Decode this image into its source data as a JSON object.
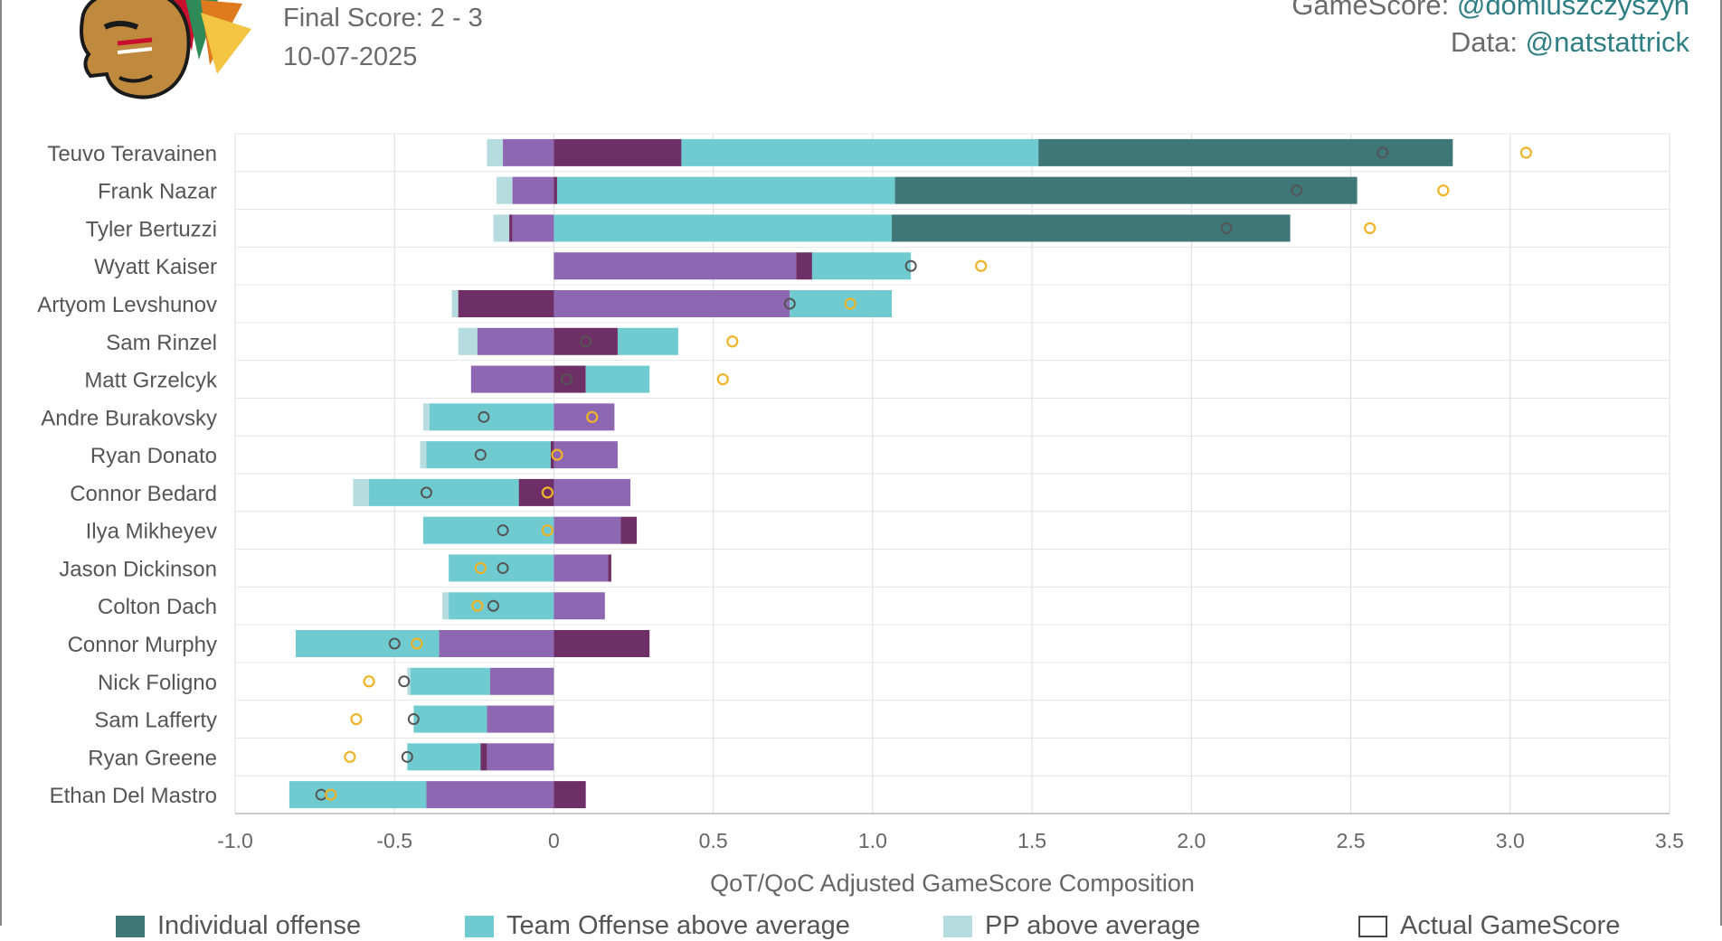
{
  "header": {
    "final_score": "Final Score: 2 - 3",
    "date": "10-07-2025",
    "gamescore_label": "GameScore: ",
    "gamescore_handle": "@domluszczyszyn",
    "data_label": "Data: ",
    "data_handle": "@natstattrick"
  },
  "colors": {
    "individual_offense": "#3f7677",
    "team_offense": "#6fcbd0",
    "pp": "#b6dcdf",
    "defense": "#8e67b3",
    "individual_defense": "#6e2f66",
    "actual_marker": "#555555",
    "gamescore_marker": "#f0b429"
  },
  "legend": [
    {
      "label": "Individual offense",
      "color": "#3f7677"
    },
    {
      "label": "Team Offense above average",
      "color": "#6fcbd0"
    },
    {
      "label": "PP above average",
      "color": "#b6dcdf"
    },
    {
      "label": "Actual GameScore",
      "color": "#ffffff"
    }
  ],
  "chart_data": {
    "type": "bar",
    "orientation": "horizontal-stacked",
    "xlabel": "QoT/QoC Adjusted GameScore Composition",
    "xlim": [
      -1.0,
      3.5
    ],
    "ticks": [
      -1.0,
      -0.5,
      0,
      0.5,
      1.0,
      1.5,
      2.0,
      2.5,
      3.0,
      3.5
    ],
    "tick_labels": [
      "-1.0",
      "-0.5",
      "0",
      "0.5",
      "1.0",
      "1.5",
      "2.0",
      "2.5",
      "3.0",
      "3.5"
    ],
    "grid": true,
    "players": [
      {
        "name": "Teuvo Teravainen",
        "segments": [
          [
            -0.21,
            -0.16,
            "pp"
          ],
          [
            -0.16,
            0,
            "defense"
          ],
          [
            0,
            0.4,
            "individual_defense"
          ],
          [
            0.4,
            1.52,
            "team_offense"
          ],
          [
            1.52,
            2.82,
            "individual_offense"
          ]
        ],
        "actual": 2.6,
        "gamescore": 3.05
      },
      {
        "name": "Frank Nazar",
        "segments": [
          [
            -0.18,
            -0.13,
            "pp"
          ],
          [
            -0.13,
            0,
            "defense"
          ],
          [
            0,
            0.01,
            "individual_defense"
          ],
          [
            0.01,
            1.07,
            "team_offense"
          ],
          [
            1.07,
            2.52,
            "individual_offense"
          ]
        ],
        "actual": 2.33,
        "gamescore": 2.79
      },
      {
        "name": "Tyler Bertuzzi",
        "segments": [
          [
            -0.19,
            -0.14,
            "pp"
          ],
          [
            -0.14,
            -0.13,
            "individual_defense"
          ],
          [
            -0.13,
            0,
            "defense"
          ],
          [
            0,
            1.06,
            "team_offense"
          ],
          [
            1.06,
            2.31,
            "individual_offense"
          ]
        ],
        "actual": 2.11,
        "gamescore": 2.56
      },
      {
        "name": "Wyatt Kaiser",
        "segments": [
          [
            0,
            0.76,
            "defense"
          ],
          [
            0.76,
            0.81,
            "individual_defense"
          ],
          [
            0.81,
            1.12,
            "team_offense"
          ]
        ],
        "actual": 1.12,
        "gamescore": 1.34
      },
      {
        "name": "Artyom Levshunov",
        "segments": [
          [
            -0.32,
            -0.3,
            "pp"
          ],
          [
            -0.3,
            0,
            "individual_defense"
          ],
          [
            0,
            0.74,
            "defense"
          ],
          [
            0.74,
            1.06,
            "team_offense"
          ]
        ],
        "actual": 0.74,
        "gamescore": 0.93
      },
      {
        "name": "Sam Rinzel",
        "segments": [
          [
            -0.3,
            -0.24,
            "pp"
          ],
          [
            -0.24,
            0,
            "defense"
          ],
          [
            0,
            0.2,
            "individual_defense"
          ],
          [
            0.2,
            0.39,
            "team_offense"
          ]
        ],
        "actual": 0.1,
        "gamescore": 0.56
      },
      {
        "name": "Matt Grzelcyk",
        "segments": [
          [
            -0.26,
            0,
            "defense"
          ],
          [
            0,
            0.1,
            "individual_defense"
          ],
          [
            0.1,
            0.3,
            "team_offense"
          ]
        ],
        "actual": 0.04,
        "gamescore": 0.53
      },
      {
        "name": "Andre Burakovsky",
        "segments": [
          [
            -0.41,
            -0.39,
            "pp"
          ],
          [
            -0.39,
            0,
            "team_offense"
          ],
          [
            0,
            0.19,
            "defense"
          ]
        ],
        "actual": -0.22,
        "gamescore": 0.12
      },
      {
        "name": "Ryan Donato",
        "segments": [
          [
            -0.42,
            -0.4,
            "pp"
          ],
          [
            -0.4,
            -0.01,
            "team_offense"
          ],
          [
            -0.01,
            0,
            "individual_defense"
          ],
          [
            0,
            0.2,
            "defense"
          ]
        ],
        "actual": -0.23,
        "gamescore": 0.01
      },
      {
        "name": "Connor Bedard",
        "segments": [
          [
            -0.63,
            -0.58,
            "pp"
          ],
          [
            -0.58,
            -0.11,
            "team_offense"
          ],
          [
            -0.11,
            0,
            "individual_defense"
          ],
          [
            0,
            0.24,
            "defense"
          ]
        ],
        "actual": -0.4,
        "gamescore": -0.02
      },
      {
        "name": "Ilya Mikheyev",
        "segments": [
          [
            -0.41,
            0,
            "team_offense"
          ],
          [
            0,
            0.21,
            "defense"
          ],
          [
            0.21,
            0.26,
            "individual_defense"
          ]
        ],
        "actual": -0.16,
        "gamescore": -0.02
      },
      {
        "name": "Jason Dickinson",
        "segments": [
          [
            -0.33,
            0,
            "team_offense"
          ],
          [
            0,
            0.17,
            "defense"
          ],
          [
            0.17,
            0.18,
            "individual_defense"
          ]
        ],
        "actual": -0.16,
        "gamescore": -0.23
      },
      {
        "name": "Colton Dach",
        "segments": [
          [
            -0.35,
            -0.33,
            "pp"
          ],
          [
            -0.33,
            0,
            "team_offense"
          ],
          [
            0,
            0.16,
            "defense"
          ]
        ],
        "actual": -0.19,
        "gamescore": -0.24
      },
      {
        "name": "Connor Murphy",
        "segments": [
          [
            -0.81,
            -0.36,
            "team_offense"
          ],
          [
            -0.36,
            0,
            "defense"
          ],
          [
            0,
            0.3,
            "individual_defense"
          ]
        ],
        "actual": -0.5,
        "gamescore": -0.43
      },
      {
        "name": "Nick Foligno",
        "segments": [
          [
            -0.46,
            -0.45,
            "pp"
          ],
          [
            -0.45,
            -0.2,
            "team_offense"
          ],
          [
            -0.2,
            0,
            "defense"
          ]
        ],
        "actual": -0.47,
        "gamescore": -0.58
      },
      {
        "name": "Sam Lafferty",
        "segments": [
          [
            -0.44,
            -0.21,
            "team_offense"
          ],
          [
            -0.21,
            0,
            "defense"
          ]
        ],
        "actual": -0.44,
        "gamescore": -0.62
      },
      {
        "name": "Ryan Greene",
        "segments": [
          [
            -0.46,
            -0.23,
            "team_offense"
          ],
          [
            -0.23,
            -0.21,
            "individual_defense"
          ],
          [
            -0.21,
            0,
            "defense"
          ]
        ],
        "actual": -0.46,
        "gamescore": -0.64
      },
      {
        "name": "Ethan Del Mastro",
        "segments": [
          [
            -0.83,
            -0.4,
            "team_offense"
          ],
          [
            -0.4,
            0,
            "defense"
          ],
          [
            0,
            0.1,
            "individual_defense"
          ]
        ],
        "actual": -0.73,
        "gamescore": -0.7
      }
    ]
  }
}
